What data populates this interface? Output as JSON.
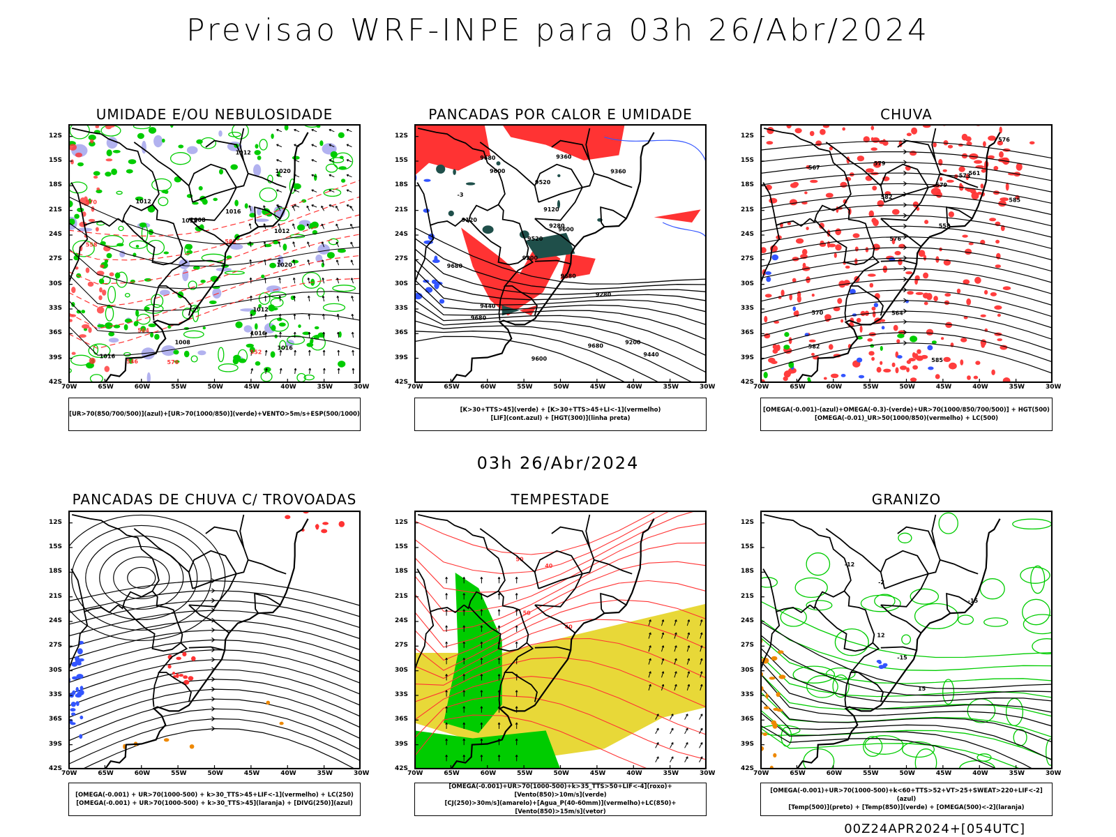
{
  "page": {
    "title": "Previsao WRF-INPE  para 03h 26/Abr/2024",
    "subtitle": "03h 26/Abr/2024",
    "footer": "00Z24APR2024+[054UTC]"
  },
  "axes": {
    "lat_labels": [
      "12S",
      "15S",
      "18S",
      "21S",
      "24S",
      "27S",
      "30S",
      "33S",
      "36S",
      "39S",
      "42S"
    ],
    "lon_labels": [
      "70W",
      "65W",
      "60W",
      "55W",
      "50W",
      "45W",
      "40W",
      "35W",
      "30W"
    ]
  },
  "colors": {
    "green": "#00cc00",
    "red": "#ff3333",
    "blue": "#3355ff",
    "lavender": "#aaaaee",
    "darkteal": "#1f4f4a",
    "yellow": "#e8d838",
    "orange": "#ee8800",
    "contour": "#000000"
  },
  "panels": [
    {
      "id": "umidade",
      "title": "UMIDADE E/OU NEBULOSIDADE",
      "legend": [
        "[UR>70(850/700/500)](azul)+[UR>70(1000/850)](verde)+VENTO>5m/s+ESP(500/1000)"
      ],
      "contour_labels": [
        "1012",
        "1012",
        "1016",
        "1016",
        "1012",
        "1008",
        "1016",
        "1012",
        "1020",
        "1020",
        "1016",
        "1012",
        "1008",
        "582",
        "576",
        "570",
        "564",
        "558",
        "552",
        "546"
      ]
    },
    {
      "id": "pancadas-calor",
      "title": "PANCADAS POR CALOR E UMIDADE",
      "legend": [
        "[K>30+TTS>45](verde) + [K>30+TTS>45+LI<-1](vermelho)",
        "[LIF](cont.azul) + [HGT(300)](linha preta)"
      ],
      "contour_labels": [
        "9680",
        "9680",
        "9680",
        "9680",
        "9600",
        "9680",
        "9600",
        "9520",
        "9440",
        "9600",
        "9520",
        "9440",
        "9360",
        "9280",
        "9360",
        "9200",
        "9120",
        "9280",
        "9200",
        "9120",
        "-3"
      ]
    },
    {
      "id": "chuva",
      "title": "CHUVA",
      "legend": [
        "[OMEGA(-0.001)-(azul)+OMEGA(-0.3)-(verde)+UR>70(1000/850/700/500)] + HGT(500)",
        "[OMEGA(-0.01)_UR>50(1000/850)(vermelho) + LC(500)"
      ],
      "contour_labels": [
        "585",
        "582",
        "585",
        "576",
        "582",
        "579",
        "573",
        "570",
        "567",
        "564",
        "561",
        "558",
        "579",
        "576"
      ]
    },
    {
      "id": "pancadas-trovoadas",
      "title": "PANCADAS DE CHUVA C/ TROVOADAS",
      "legend": [
        "[OMEGA(-0.001) + UR>70(1000-500) + k>30_TTS>45+LIF<-1](vermelho) + LC(250)",
        "[OMEGA(-0.001) + UR>70(1000-500) + k>30_TTS>45](laranja) + [DIVG(250)](azul)"
      ],
      "contour_labels": []
    },
    {
      "id": "tempestade",
      "title": "TEMPESTADE",
      "legend": [
        "[OMEGA(-0.001)+UR>70(1000-500)+k>35_TTS>50+LIF<-4](roxo)+[Vento(850)>10m/s](verde)",
        "[CJ(250)>30m/s](amarelo)+[Agua_P(40-60mm)](vermelho)+LC(850)+[Vento(850)>15m/s](vetor)"
      ],
      "contour_labels": [
        "40",
        "50",
        "50",
        "40"
      ]
    },
    {
      "id": "granizo",
      "title": "GRANIZO",
      "legend": [
        "[OMEGA(-0.001)+UR>70(1000-500)+k<60+TTS>52+VT>25+SWEAT>220+LIF<-2](azul)",
        "[Temp(500)](preto) + [Temp(850)](verde) + [OMEGA(500)<-2](laranja)"
      ],
      "contour_labels": [
        "-15",
        "-15",
        "-2",
        "-12",
        "12",
        "15"
      ]
    }
  ]
}
